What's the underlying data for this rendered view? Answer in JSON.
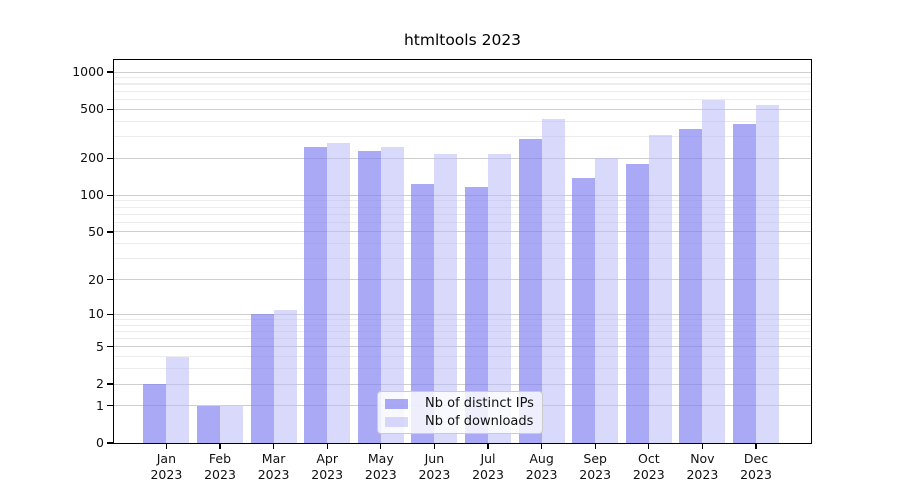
{
  "chart_data": {
    "type": "bar",
    "title": "htmltools 2023",
    "y_scale": "log1p",
    "ylim": [
      0,
      1190
    ],
    "grid": true,
    "y_ticks": [
      0,
      1,
      2,
      5,
      10,
      20,
      50,
      100,
      200,
      500,
      1000
    ],
    "y_minor_gridlines": [
      3,
      4,
      6,
      7,
      8,
      9,
      30,
      40,
      60,
      70,
      80,
      90,
      300,
      400,
      600,
      700,
      800,
      900
    ],
    "categories": [
      "Jan",
      "Feb",
      "Mar",
      "Apr",
      "May",
      "Jun",
      "Jul",
      "Aug",
      "Sep",
      "Oct",
      "Nov",
      "Dec"
    ],
    "x_tick_line2": "2023",
    "series": [
      {
        "name": "Nb of distinct IPs",
        "color": "#7f7ff0",
        "alpha": 0.67,
        "values": [
          2,
          1,
          10,
          245,
          228,
          124,
          116,
          288,
          138,
          178,
          345,
          380
        ]
      },
      {
        "name": "Nb of downloads",
        "color": "#babafa",
        "alpha": 0.55,
        "values": [
          4,
          1,
          11,
          268,
          245,
          215,
          218,
          418,
          200,
          310,
          590,
          545
        ]
      }
    ],
    "legend": {
      "position": "lower-center-inside",
      "entries": [
        "Nb of distinct IPs",
        "Nb of downloads"
      ]
    },
    "colors": {
      "major_grid": "#cfcfcf",
      "minor_grid": "#ececec",
      "spine": "#000000",
      "text": "#111111",
      "background": "#ffffff"
    }
  }
}
